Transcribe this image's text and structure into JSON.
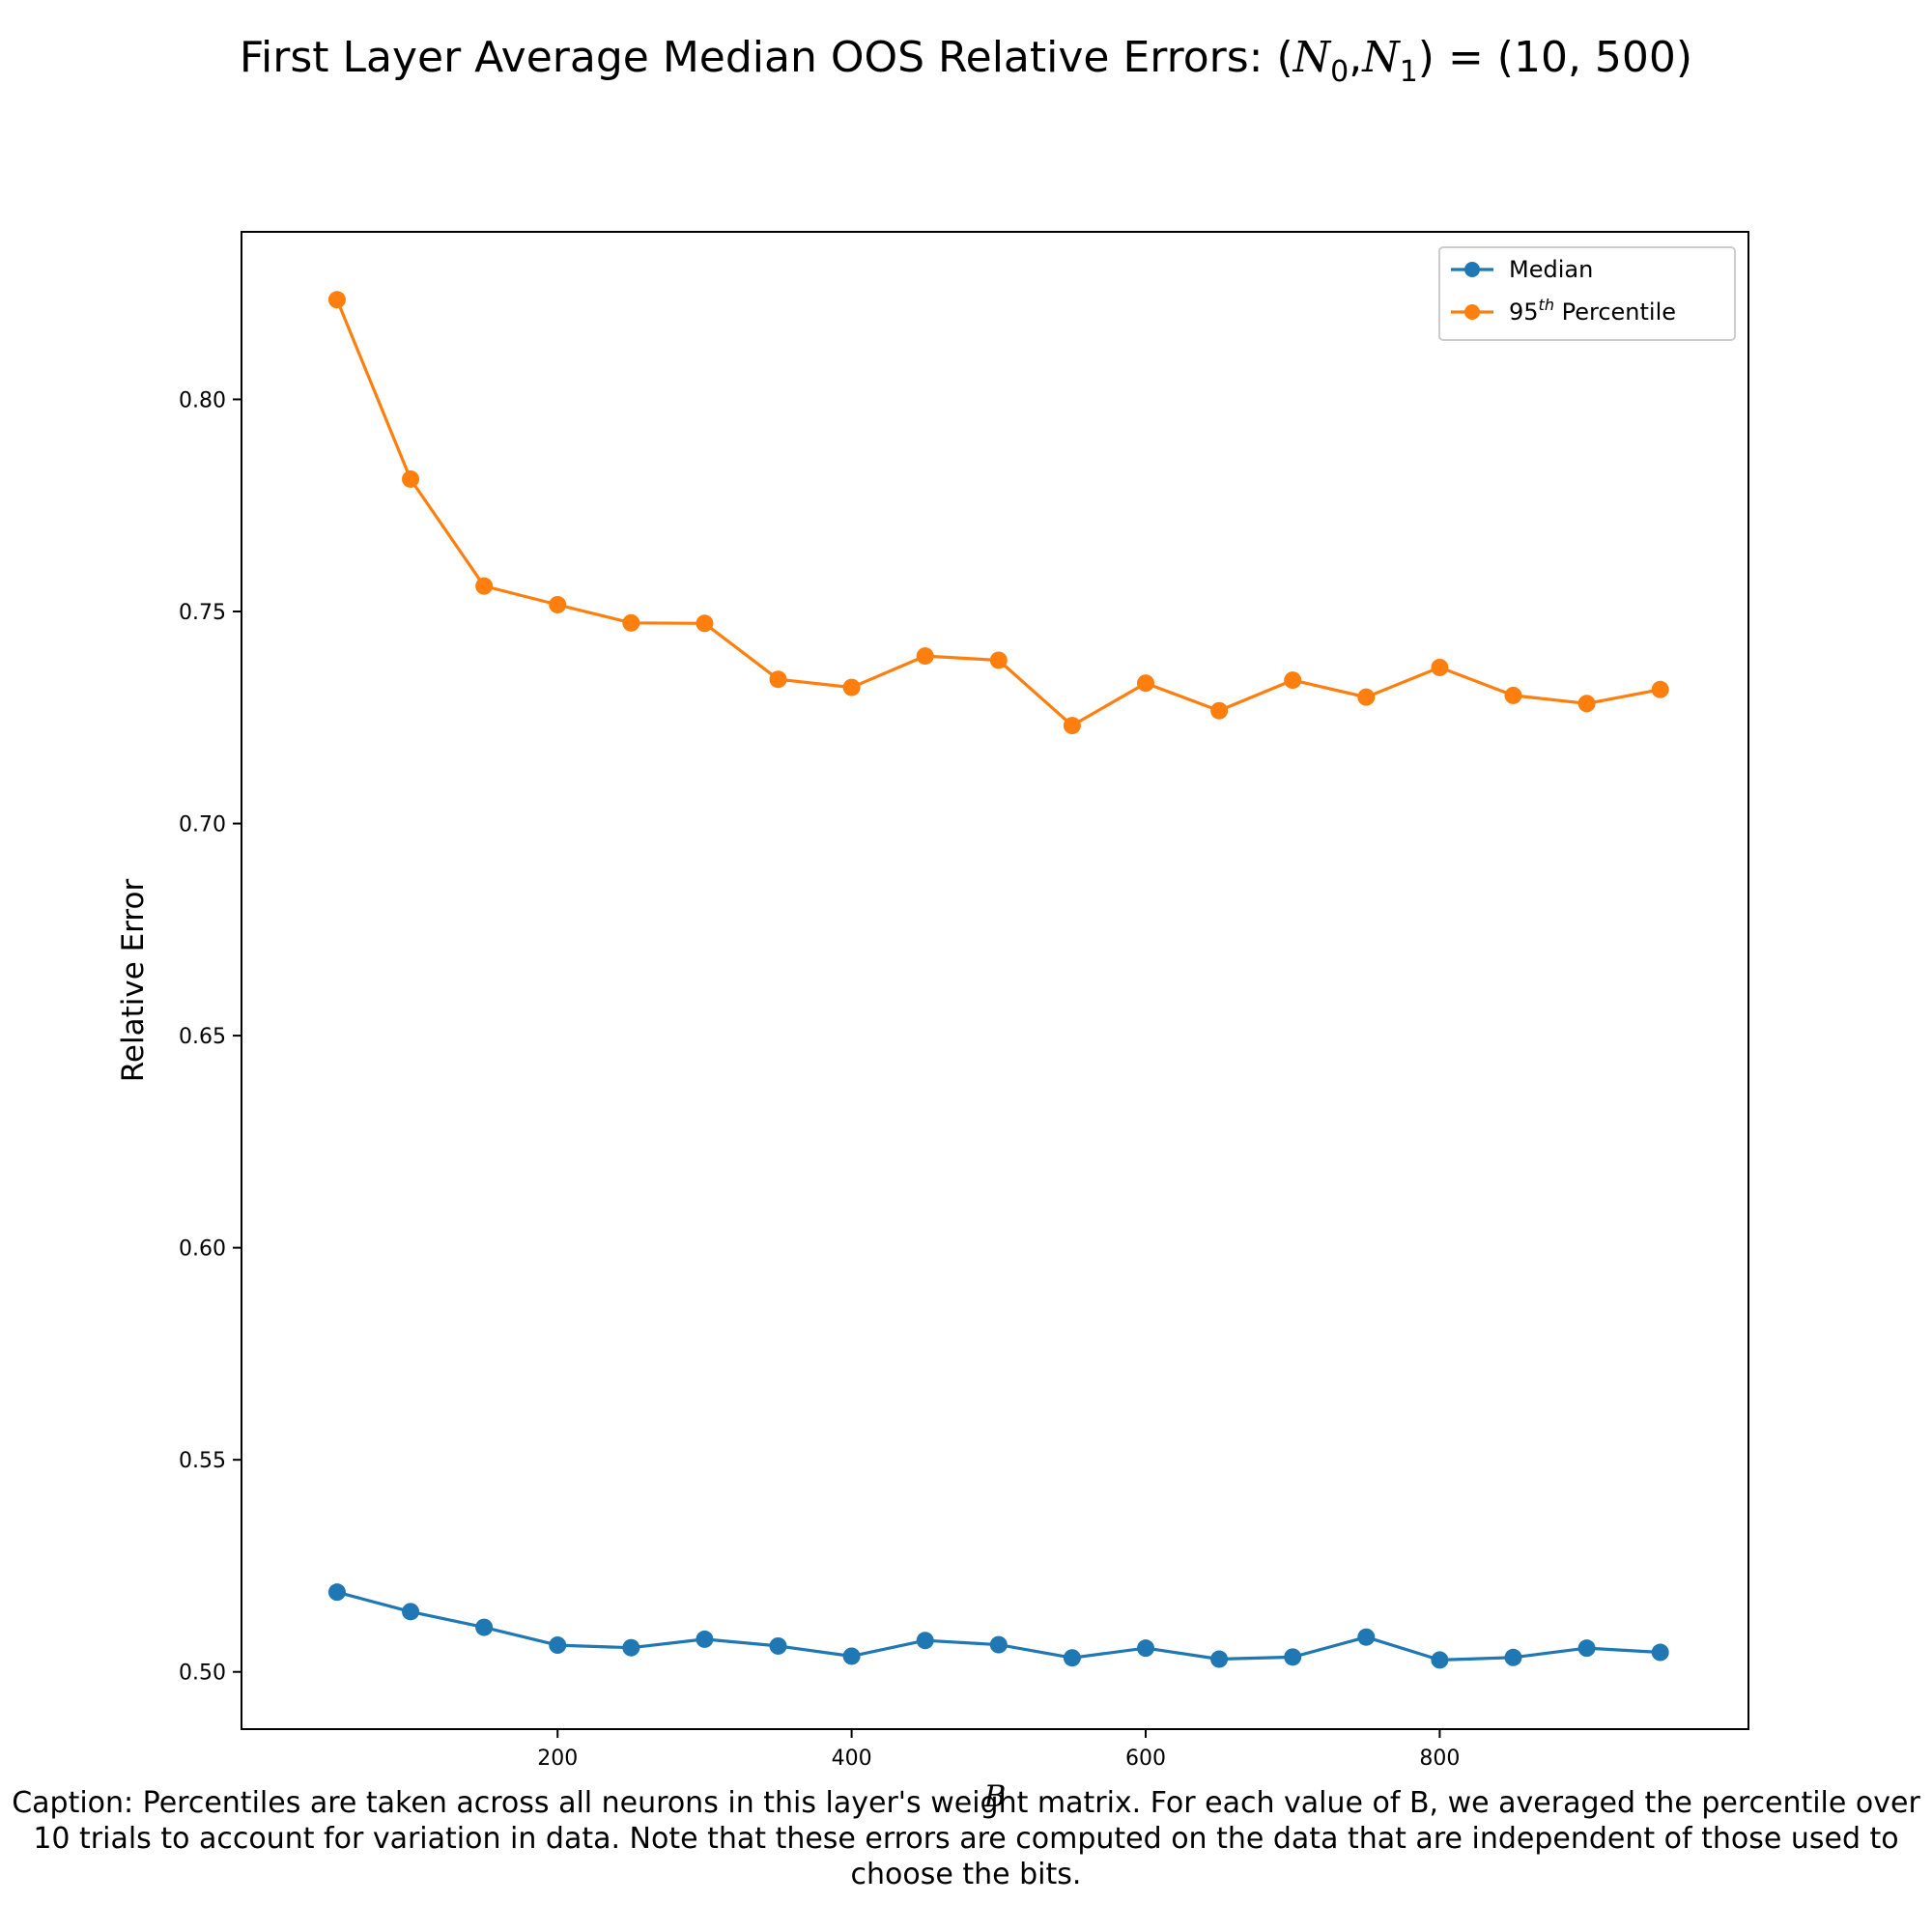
{
  "title": {
    "prefix": "First Layer Average Median OOS Relative Errors: (",
    "n0": "N",
    "n0_sub": "0",
    "comma": ",",
    "n1": "N",
    "n1_sub": "1",
    "suffix": ") = (10, 500)"
  },
  "caption": "Caption: Percentiles are taken across all neurons in this layer's weight matrix. For each value of B, we averaged the percentile over 10 trials to account for variation in data. Note that these errors are computed on the data that are independent of those used to choose the bits.",
  "chart_data": {
    "type": "line",
    "xlabel": "B",
    "ylabel": "Relative Error",
    "xlim": [
      -15,
      1010
    ],
    "ylim": [
      0.4865,
      0.8395
    ],
    "xticks": [
      200,
      400,
      600,
      800
    ],
    "yticks": [
      0.5,
      0.55,
      0.6,
      0.65,
      0.7,
      0.75,
      0.8
    ],
    "ytick_labels": [
      "0.50",
      "0.55",
      "0.60",
      "0.65",
      "0.70",
      "0.75",
      "0.80"
    ],
    "x": [
      50,
      100,
      150,
      200,
      250,
      300,
      350,
      400,
      450,
      500,
      550,
      600,
      650,
      700,
      750,
      800,
      850,
      900,
      950
    ],
    "series": [
      {
        "name": "Median",
        "color": "#1f77b4",
        "values": [
          0.5188,
          0.5142,
          0.5105,
          0.5063,
          0.5057,
          0.5077,
          0.5061,
          0.5037,
          0.5074,
          0.5064,
          0.5033,
          0.5056,
          0.503,
          0.5035,
          0.5082,
          0.5028,
          0.5034,
          0.5056,
          0.5046
        ]
      },
      {
        "name": "95",
        "name_sup": "th",
        "name_rest": " Percentile",
        "color": "#ff7f0e",
        "values": [
          0.8235,
          0.7812,
          0.756,
          0.7516,
          0.7473,
          0.7472,
          0.734,
          0.7321,
          0.7395,
          0.7385,
          0.7231,
          0.7331,
          0.7266,
          0.7338,
          0.7298,
          0.7368,
          0.7302,
          0.7283,
          0.7316
        ]
      }
    ],
    "legend_position": "top-right",
    "grid": false
  }
}
